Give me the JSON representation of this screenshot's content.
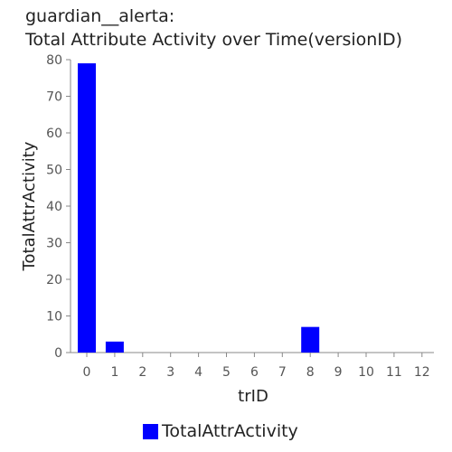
{
  "chart_data": {
    "type": "bar",
    "title_lines": [
      "guardian__alerta:",
      "Total Attribute Activity over Time(versionID)"
    ],
    "xlabel": "trID",
    "ylabel": "TotalAttrActivity",
    "categories": [
      "0",
      "1",
      "2",
      "3",
      "4",
      "5",
      "6",
      "7",
      "8",
      "9",
      "10",
      "11",
      "12"
    ],
    "series": [
      {
        "name": "TotalAttrActivity",
        "color": "#0000ff",
        "values": [
          79,
          3,
          0,
          0,
          0,
          0,
          0,
          0,
          7,
          0,
          0,
          0,
          0
        ]
      }
    ],
    "ylim": [
      0,
      80
    ],
    "yticks": [
      0,
      10,
      20,
      30,
      40,
      50,
      60,
      70,
      80
    ],
    "grid": false,
    "legend_position": "bottom-center"
  }
}
